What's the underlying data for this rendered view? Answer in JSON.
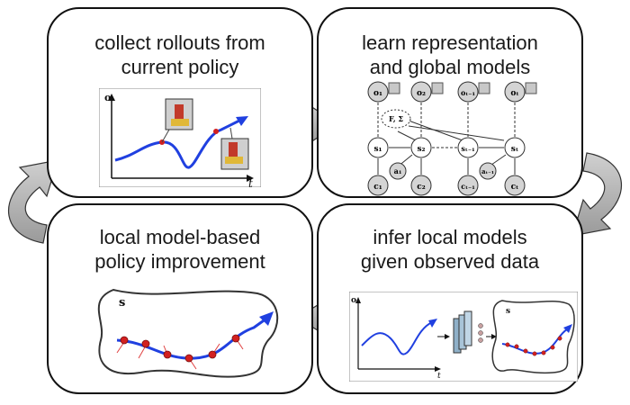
{
  "boxes": {
    "collect": {
      "line1": "collect rollouts from",
      "line2": "current policy"
    },
    "learn": {
      "line1": "learn representation",
      "line2": "and global models"
    },
    "infer": {
      "line1": "infer local models",
      "line2": "given observed data"
    },
    "improve": {
      "line1": "local model-based",
      "line2": "policy improvement"
    }
  },
  "plot_labels": {
    "o": "o",
    "t": "t",
    "s": "s"
  },
  "graph_nodes": {
    "obs": [
      "o₁",
      "o₂",
      "oₜ₋₁",
      "oₜ"
    ],
    "params": "F, Σ",
    "states": [
      "s₁",
      "s₂",
      "sₜ₋₁",
      "sₜ"
    ],
    "actions": [
      "a₁",
      "aₜ₋₁"
    ],
    "costs": [
      "c₁",
      "c₂",
      "cₜ₋₁",
      "cₜ"
    ]
  },
  "colors": {
    "trajectory": "#2040e0",
    "points": "#d22020",
    "arrow_fill": "#b8b8b8",
    "node_fill": "#d4d4d4"
  }
}
